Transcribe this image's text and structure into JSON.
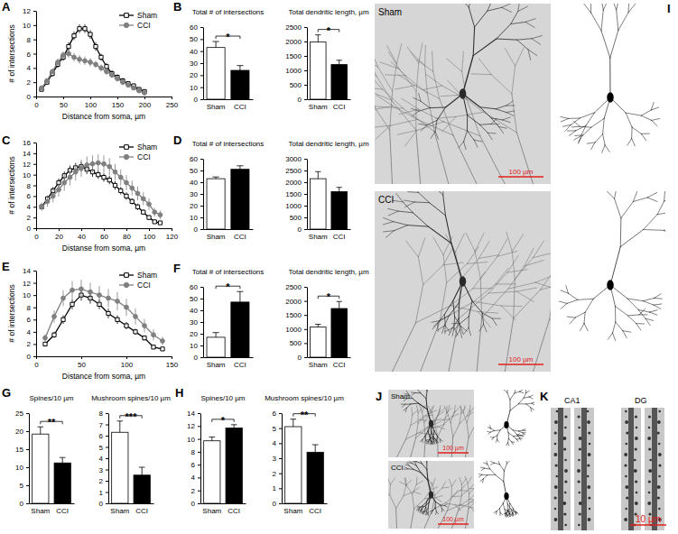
{
  "chart_data": [
    {
      "type": "line",
      "panel": "A",
      "xlabel": "Distance from soma, µm",
      "ylabel": "# of intersections",
      "x": [
        10,
        20,
        30,
        40,
        50,
        60,
        70,
        80,
        90,
        100,
        110,
        120,
        130,
        140,
        150,
        160,
        170,
        180,
        190,
        200
      ],
      "xlim": [
        0,
        250
      ],
      "xticks": [
        0,
        50,
        100,
        150,
        200,
        250
      ],
      "ylim": [
        0,
        12
      ],
      "yticks": [
        0,
        2,
        4,
        6,
        8,
        10,
        12
      ],
      "legend": "upper right",
      "series": [
        {
          "name": "Sham",
          "color": "#000000",
          "marker": "square-open",
          "values": [
            1,
            2,
            3.2,
            4.5,
            5.5,
            7,
            8.5,
            9.5,
            9.5,
            8.7,
            7,
            5.5,
            4.2,
            3.2,
            2.7,
            2.2,
            1.8,
            1.5,
            1,
            0.7
          ],
          "errors": [
            0.2,
            0.3,
            0.4,
            0.5,
            0.5,
            0.6,
            0.6,
            0.6,
            0.6,
            0.6,
            0.6,
            0.5,
            0.5,
            0.5,
            0.4,
            0.4,
            0.3,
            0.3,
            0.3,
            0.2
          ]
        },
        {
          "name": "CCI",
          "color": "#808080",
          "marker": "circle",
          "values": [
            1.2,
            2.2,
            3.5,
            4.8,
            5.8,
            6,
            5.5,
            5.2,
            5,
            4.8,
            4.5,
            4,
            3.5,
            3,
            2.5,
            2,
            1.6,
            1.2,
            0.8,
            0.5
          ],
          "errors": [
            0.2,
            0.3,
            0.4,
            0.5,
            0.5,
            0.6,
            0.6,
            0.6,
            0.6,
            0.6,
            0.5,
            0.5,
            0.5,
            0.4,
            0.4,
            0.4,
            0.3,
            0.3,
            0.3,
            0.2
          ]
        }
      ]
    },
    {
      "type": "bar",
      "panel": "B",
      "title": "Total # of intersections",
      "categories": [
        "Sham",
        "CCI"
      ],
      "values": [
        43,
        24
      ],
      "errors": [
        5,
        4
      ],
      "colors": [
        "#ffffff",
        "#000000"
      ],
      "ylim": [
        0,
        60
      ],
      "yticks": [
        0,
        10,
        20,
        30,
        40,
        50,
        60
      ],
      "annotations": [
        "*"
      ]
    },
    {
      "type": "bar",
      "title": "Total dendritic length, µm",
      "categories": [
        "Sham",
        "CCI"
      ],
      "values": [
        1980,
        1200
      ],
      "errors": [
        250,
        150
      ],
      "colors": [
        "#ffffff",
        "#000000"
      ],
      "ylim": [
        0,
        2500
      ],
      "yticks": [
        0,
        500,
        1000,
        1500,
        2000,
        2500
      ],
      "annotations": [
        "*"
      ]
    },
    {
      "type": "line",
      "panel": "C",
      "xlabel": "Distanse from soma, µm",
      "ylabel": "# of intersections",
      "x": [
        5,
        10,
        15,
        20,
        25,
        30,
        35,
        40,
        45,
        50,
        55,
        60,
        65,
        70,
        75,
        80,
        85,
        90,
        95,
        100,
        105,
        110
      ],
      "xlim": [
        0,
        120
      ],
      "xticks": [
        0,
        20,
        40,
        60,
        80,
        100,
        120
      ],
      "ylim": [
        0,
        16
      ],
      "yticks": [
        0,
        2,
        4,
        6,
        8,
        10,
        12,
        14,
        16
      ],
      "legend": "upper right",
      "series": [
        {
          "name": "Sham",
          "color": "#000000",
          "marker": "square-open",
          "values": [
            4,
            5.5,
            7,
            8.5,
            9.8,
            10.8,
            11.3,
            11.5,
            11,
            10.5,
            10,
            9.5,
            9,
            8,
            7,
            6,
            5,
            4,
            3,
            2,
            1.2,
            1
          ],
          "errors": [
            0.5,
            0.6,
            0.7,
            0.8,
            0.8,
            0.9,
            0.9,
            0.9,
            0.9,
            0.9,
            0.8,
            0.8,
            0.8,
            0.8,
            0.7,
            0.7,
            0.6,
            0.6,
            0.5,
            0.4,
            0.3,
            0.3
          ]
        },
        {
          "name": "CCI",
          "color": "#808080",
          "marker": "circle",
          "values": [
            4,
            5,
            6,
            7.2,
            8.5,
            9.5,
            10.5,
            11.2,
            11.8,
            12,
            12.2,
            12,
            11.5,
            10.5,
            9.5,
            8.5,
            7.5,
            6.5,
            5.5,
            4.5,
            3,
            2.5
          ],
          "errors": [
            0.8,
            1,
            1.2,
            1.3,
            1.5,
            1.5,
            1.6,
            1.6,
            1.6,
            1.6,
            1.6,
            1.6,
            1.6,
            1.5,
            1.5,
            1.4,
            1.4,
            1.3,
            1.2,
            1.1,
            0.8,
            0.8
          ]
        }
      ]
    },
    {
      "type": "bar",
      "panel": "D",
      "title": "Total # of intersections",
      "categories": [
        "Sham",
        "CCI"
      ],
      "values": [
        43,
        51
      ],
      "errors": [
        1.5,
        3
      ],
      "colors": [
        "#ffffff",
        "#000000"
      ],
      "ylim": [
        0,
        60
      ],
      "yticks": [
        0,
        10,
        20,
        30,
        40,
        50,
        60
      ]
    },
    {
      "type": "bar",
      "title": "Total dendritic length, µm",
      "categories": [
        "Sham",
        "CCI"
      ],
      "values": [
        2150,
        1600
      ],
      "errors": [
        300,
        180
      ],
      "colors": [
        "#ffffff",
        "#000000"
      ],
      "ylim": [
        0,
        3000
      ],
      "yticks": [
        0,
        500,
        1000,
        1500,
        2000,
        2500,
        3000
      ]
    },
    {
      "type": "line",
      "panel": "E",
      "xlabel": "Distance from soma, µm",
      "ylabel": "# of intersections",
      "x": [
        10,
        20,
        30,
        40,
        50,
        60,
        70,
        80,
        90,
        100,
        110,
        120,
        130,
        140
      ],
      "xlim": [
        0,
        150
      ],
      "xticks": [
        0,
        50,
        100,
        150
      ],
      "ylim": [
        0,
        14
      ],
      "yticks": [
        0,
        2,
        4,
        6,
        8,
        10,
        12,
        14
      ],
      "legend": "upper right",
      "series": [
        {
          "name": "Sham",
          "color": "#000000",
          "marker": "square-open",
          "values": [
            2,
            3.5,
            6,
            8.5,
            10,
            9.5,
            8.5,
            7,
            6,
            5,
            4,
            3,
            1.5,
            1.2
          ],
          "errors": [
            0.3,
            0.5,
            0.7,
            0.8,
            0.9,
            0.9,
            0.8,
            0.8,
            0.7,
            0.6,
            0.5,
            0.4,
            0.3,
            0.3
          ]
        },
        {
          "name": "CCI",
          "color": "#808080",
          "marker": "circle",
          "values": [
            3,
            6.5,
            9.5,
            10.8,
            11,
            10.5,
            10,
            9.5,
            9,
            8,
            6.5,
            5,
            3.5,
            2.5
          ],
          "errors": [
            0.6,
            1,
            1.3,
            1.5,
            1.5,
            1.5,
            1.5,
            1.5,
            1.5,
            1.4,
            1.3,
            1.1,
            0.9,
            0.7
          ]
        }
      ]
    },
    {
      "type": "bar",
      "panel": "F",
      "title": "Total # of intersections",
      "categories": [
        "Sham",
        "CCI"
      ],
      "values": [
        17,
        47
      ],
      "errors": [
        4,
        9
      ],
      "colors": [
        "#ffffff",
        "#000000"
      ],
      "ylim": [
        0,
        60
      ],
      "yticks": [
        0,
        10,
        20,
        30,
        40,
        50,
        60
      ],
      "annotations": [
        "*"
      ]
    },
    {
      "type": "bar",
      "title": "Total dendritic length, µm",
      "categories": [
        "Sham",
        "CCI"
      ],
      "values": [
        1070,
        1730
      ],
      "errors": [
        100,
        250
      ],
      "colors": [
        "#ffffff",
        "#000000"
      ],
      "ylim": [
        0,
        2500
      ],
      "yticks": [
        0,
        500,
        1000,
        1500,
        2000,
        2500
      ],
      "annotations": [
        "*"
      ]
    },
    {
      "type": "bar",
      "panel": "G",
      "title": "Spines/10 µm",
      "categories": [
        "Sham",
        "CCI"
      ],
      "values": [
        19.2,
        11.2
      ],
      "errors": [
        2,
        1.5
      ],
      "colors": [
        "#ffffff",
        "#000000"
      ],
      "ylim": [
        0,
        25
      ],
      "yticks": [
        0,
        5,
        10,
        15,
        20,
        25
      ],
      "annotations": [
        "**"
      ]
    },
    {
      "type": "bar",
      "title": "Mushroom spines/10 µm",
      "categories": [
        "Sham",
        "CCI"
      ],
      "values": [
        6.3,
        2.5
      ],
      "errors": [
        1,
        0.7
      ],
      "colors": [
        "#ffffff",
        "#000000"
      ],
      "ylim": [
        0,
        8
      ],
      "yticks": [
        0,
        1,
        2,
        3,
        4,
        5,
        6,
        7,
        8
      ],
      "annotations": [
        "***"
      ]
    },
    {
      "type": "bar",
      "panel": "H",
      "title": "Spines/10 µm",
      "categories": [
        "Sham",
        "CCI"
      ],
      "values": [
        9.7,
        11.7
      ],
      "errors": [
        0.6,
        0.5
      ],
      "colors": [
        "#ffffff",
        "#000000"
      ],
      "ylim": [
        0,
        14
      ],
      "yticks": [
        0,
        2,
        4,
        6,
        8,
        10,
        12,
        14
      ],
      "annotations": [
        "*"
      ]
    },
    {
      "type": "bar",
      "title": "Mushroom spines/10 µm",
      "categories": [
        "Sham",
        "CCI"
      ],
      "values": [
        5.1,
        3.4
      ],
      "errors": [
        0.5,
        0.5
      ],
      "colors": [
        "#ffffff",
        "#000000"
      ],
      "ylim": [
        0,
        6
      ],
      "yticks": [
        0,
        1,
        2,
        3,
        4,
        5,
        6
      ],
      "annotations": [
        "**"
      ]
    }
  ],
  "image_panels": [
    {
      "panel": "I",
      "rows": [
        {
          "label": "Sham",
          "scale_bar": "100 µm"
        },
        {
          "label": "CCI",
          "scale_bar": "100 µm"
        }
      ]
    },
    {
      "panel": "J",
      "rows": [
        {
          "label": "Sham",
          "scale_bar": "100 µm"
        },
        {
          "label": "CCI",
          "scale_bar": "100 µm"
        }
      ]
    },
    {
      "panel": "K",
      "columns": [
        "CA1",
        "DG"
      ],
      "scale_bar": "10 µm"
    }
  ]
}
